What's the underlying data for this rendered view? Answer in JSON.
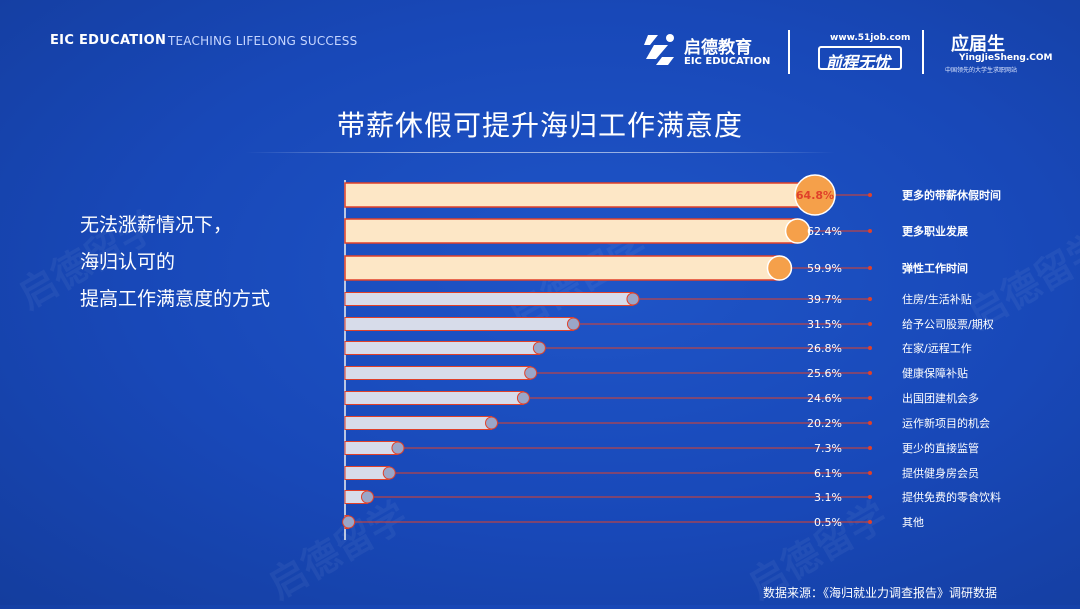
{
  "header": {
    "brand": "EIC EDUCATION",
    "slogan": "TEACHING LIFELONG SUCCESS",
    "logos": [
      {
        "name": "eic-logo",
        "cn": "启德教育",
        "en": "EIC EDUCATION"
      },
      {
        "name": "51job-logo",
        "url": "www.51job.com",
        "text": "前程无忧"
      },
      {
        "name": "yingjiesheng-logo",
        "cn": "应届生",
        "domain": "YingJieSheng.COM",
        "sub": "中国领先的大学生求职网站"
      }
    ]
  },
  "title": "带薪休假可提升海归工作满意度",
  "side_text": [
    "无法涨薪情况下，",
    "海归认可的",
    "提高工作满意度的方式"
  ],
  "source": "数据来源：《海归就业力调查报告》调研数据",
  "watermark": "启德留学",
  "colors": {
    "background": "#1848b8",
    "highlight_bar": "#fde7c6",
    "highlight_end": "#f5a04a",
    "normal_bar": "#d7dcea",
    "normal_end": "#9aa6c8",
    "bar_outline": "#e0412a",
    "leader_line": "#e0412a",
    "axis": "#f0f0f0"
  },
  "chart_data": {
    "type": "bar",
    "orientation": "horizontal",
    "categories": [
      "更多的带薪休假时间",
      "更多职业发展",
      "弹性工作时间",
      "住房/生活补贴",
      "给予公司股票/期权",
      "在家/远程工作",
      "健康保障补贴",
      "出国团建机会多",
      "运作新项目的机会",
      "更少的直接监管",
      "提供健身房会员",
      "提供免费的零食饮料",
      "其他"
    ],
    "values": [
      64.8,
      62.4,
      59.9,
      39.7,
      31.5,
      26.8,
      25.6,
      24.6,
      20.2,
      7.3,
      6.1,
      3.1,
      0.5
    ],
    "value_labels": [
      "64.8%",
      "62.4%",
      "59.9%",
      "39.7%",
      "31.5%",
      "26.8%",
      "25.6%",
      "24.6%",
      "20.2%",
      "7.3%",
      "6.1%",
      "3.1%",
      "0.5%"
    ],
    "highlighted_count": 3,
    "unit": "%",
    "xlim": [
      0,
      64.8
    ],
    "grid": false,
    "legend": "none"
  }
}
